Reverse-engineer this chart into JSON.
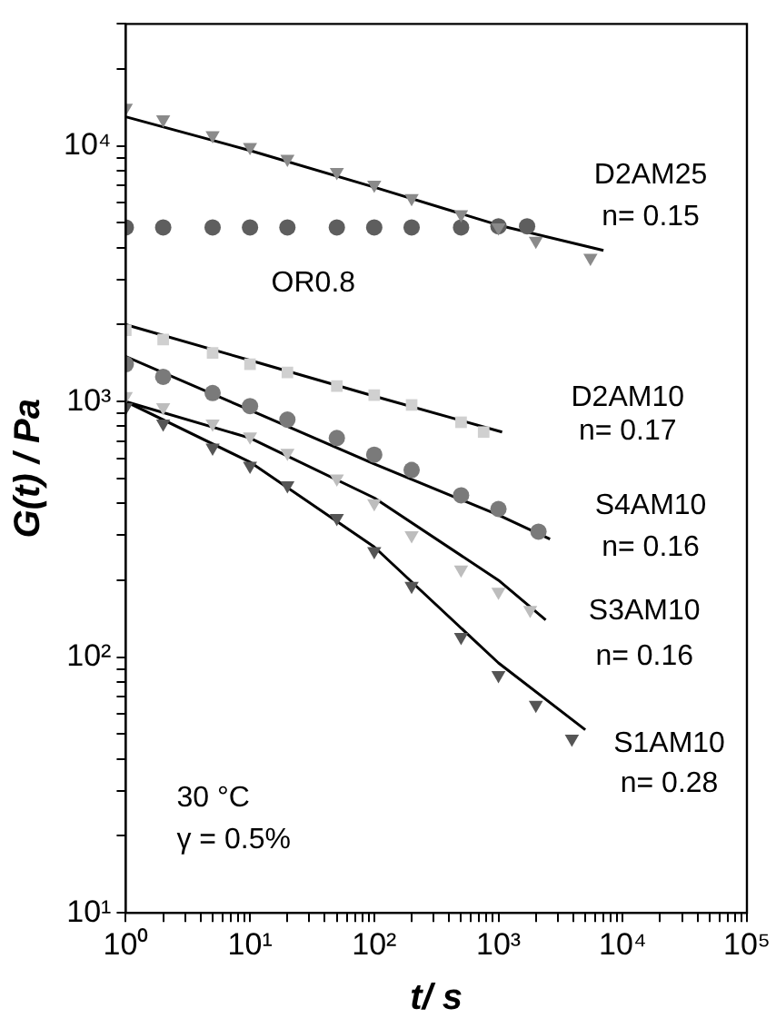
{
  "chart_data": {
    "type": "scatter",
    "xlabel": "t/ s",
    "ylabel": "G(t) / Pa",
    "log": "xy",
    "grid": false,
    "legend": false,
    "xlim": [
      1,
      100000
    ],
    "ylim": [
      10,
      30000
    ],
    "xticks": [
      {
        "value": 1,
        "label": "10⁰"
      },
      {
        "value": 2,
        "label": null
      },
      {
        "value": 3,
        "label": null
      },
      {
        "value": 4,
        "label": null
      },
      {
        "value": 5,
        "label": null
      },
      {
        "value": 6,
        "label": null
      },
      {
        "value": 7,
        "label": null
      },
      {
        "value": 8,
        "label": null
      },
      {
        "value": 9,
        "label": null
      },
      {
        "value": 10,
        "label": "10¹"
      },
      {
        "value": 20,
        "label": null
      },
      {
        "value": 30,
        "label": null
      },
      {
        "value": 40,
        "label": null
      },
      {
        "value": 50,
        "label": null
      },
      {
        "value": 60,
        "label": null
      },
      {
        "value": 70,
        "label": null
      },
      {
        "value": 80,
        "label": null
      },
      {
        "value": 90,
        "label": null
      },
      {
        "value": 100,
        "label": "10²"
      },
      {
        "value": 200,
        "label": null
      },
      {
        "value": 300,
        "label": null
      },
      {
        "value": 400,
        "label": null
      },
      {
        "value": 500,
        "label": null
      },
      {
        "value": 600,
        "label": null
      },
      {
        "value": 700,
        "label": null
      },
      {
        "value": 800,
        "label": null
      },
      {
        "value": 900,
        "label": null
      },
      {
        "value": 1000,
        "label": "10³"
      },
      {
        "value": 2000,
        "label": null
      },
      {
        "value": 3000,
        "label": null
      },
      {
        "value": 4000,
        "label": null
      },
      {
        "value": 5000,
        "label": null
      },
      {
        "value": 6000,
        "label": null
      },
      {
        "value": 7000,
        "label": null
      },
      {
        "value": 8000,
        "label": null
      },
      {
        "value": 9000,
        "label": null
      },
      {
        "value": 10000,
        "label": "10⁴"
      },
      {
        "value": 20000,
        "label": null
      },
      {
        "value": 30000,
        "label": null
      },
      {
        "value": 40000,
        "label": null
      },
      {
        "value": 50000,
        "label": null
      },
      {
        "value": 60000,
        "label": null
      },
      {
        "value": 70000,
        "label": null
      },
      {
        "value": 80000,
        "label": null
      },
      {
        "value": 90000,
        "label": null
      },
      {
        "value": 100000,
        "label": "10⁵"
      }
    ],
    "yticks": [
      {
        "value": 10,
        "label": "10¹"
      },
      {
        "value": 20,
        "label": null
      },
      {
        "value": 30,
        "label": null
      },
      {
        "value": 40,
        "label": null
      },
      {
        "value": 50,
        "label": null
      },
      {
        "value": 60,
        "label": null
      },
      {
        "value": 70,
        "label": null
      },
      {
        "value": 80,
        "label": null
      },
      {
        "value": 90,
        "label": null
      },
      {
        "value": 100,
        "label": "10²"
      },
      {
        "value": 200,
        "label": null
      },
      {
        "value": 300,
        "label": null
      },
      {
        "value": 400,
        "label": null
      },
      {
        "value": 500,
        "label": null
      },
      {
        "value": 600,
        "label": null
      },
      {
        "value": 700,
        "label": null
      },
      {
        "value": 800,
        "label": null
      },
      {
        "value": 900,
        "label": null
      },
      {
        "value": 1000,
        "label": "10³"
      },
      {
        "value": 2000,
        "label": null
      },
      {
        "value": 3000,
        "label": null
      },
      {
        "value": 4000,
        "label": null
      },
      {
        "value": 5000,
        "label": null
      },
      {
        "value": 6000,
        "label": null
      },
      {
        "value": 7000,
        "label": null
      },
      {
        "value": 8000,
        "label": null
      },
      {
        "value": 9000,
        "label": null
      },
      {
        "value": 10000,
        "label": "10⁴"
      },
      {
        "value": 20000,
        "label": null
      },
      {
        "value": 30000,
        "label": null
      }
    ],
    "series": [
      {
        "type": "scatter",
        "marker": "triangle",
        "color": "#8a8a8a",
        "x": [
          1,
          2,
          5,
          10,
          20,
          50,
          100,
          200,
          500,
          1000,
          2000,
          5500
        ],
        "values": [
          14100,
          12700,
          11000,
          9900,
          8900,
          7900,
          7050,
          6250,
          5400,
          4800,
          4250,
          3650
        ]
      },
      {
        "type": "scatter",
        "marker": "circle",
        "color": "#5e5e5e",
        "x": [
          1,
          2,
          5,
          10,
          20,
          50,
          100,
          200,
          500,
          1000,
          1700
        ],
        "values": [
          4800,
          4800,
          4800,
          4800,
          4800,
          4800,
          4800,
          4800,
          4800,
          4850,
          4850
        ]
      },
      {
        "type": "scatter",
        "marker": "square",
        "color": "#d0d0d0",
        "x": [
          1,
          2,
          5,
          10,
          20,
          50,
          100,
          200,
          500,
          760
        ],
        "values": [
          1900,
          1750,
          1550,
          1400,
          1300,
          1150,
          1060,
          970,
          830,
          760
        ]
      },
      {
        "type": "scatter",
        "marker": "circle",
        "color": "#7a7a7a",
        "x": [
          1,
          2,
          5,
          10,
          20,
          50,
          100,
          200,
          500,
          1000,
          2100
        ],
        "values": [
          1400,
          1250,
          1080,
          960,
          850,
          720,
          620,
          540,
          430,
          380,
          310
        ]
      },
      {
        "type": "scatter",
        "marker": "triangle",
        "color": "#bdbdbd",
        "x": [
          1,
          2,
          5,
          10,
          20,
          50,
          100,
          200,
          500,
          1000,
          1800
        ],
        "values": [
          1050,
          950,
          820,
          730,
          630,
          500,
          400,
          300,
          220,
          180,
          153
        ]
      },
      {
        "type": "scatter",
        "marker": "triangle",
        "color": "#555555",
        "x": [
          1,
          2,
          5,
          10,
          20,
          50,
          100,
          200,
          500,
          1000,
          2000,
          3900
        ],
        "values": [
          950,
          820,
          660,
          560,
          470,
          350,
          260,
          190,
          120,
          85,
          65,
          48
        ]
      },
      {
        "type": "line",
        "marker": "none",
        "color": "#000000",
        "x": [
          1,
          10,
          100,
          1000,
          7000
        ],
        "values": [
          13000,
          9600,
          6900,
          4900,
          3900
        ]
      },
      {
        "type": "line",
        "marker": "none",
        "color": "#000000",
        "x": [
          1,
          10,
          100,
          1070
        ],
        "values": [
          2000,
          1450,
          1050,
          760
        ]
      },
      {
        "type": "line",
        "marker": "none",
        "color": "#000000",
        "x": [
          1,
          10,
          100,
          1000,
          2600
        ],
        "values": [
          1500,
          925,
          570,
          360,
          290
        ]
      },
      {
        "type": "line",
        "marker": "none",
        "color": "#000000",
        "x": [
          1,
          10,
          100,
          1000,
          2400
        ],
        "values": [
          1000,
          720,
          420,
          200,
          140
        ]
      },
      {
        "type": "line",
        "marker": "none",
        "color": "#000000",
        "x": [
          1,
          10,
          100,
          1000,
          5000
        ],
        "values": [
          1000,
          580,
          270,
          95,
          52
        ]
      }
    ],
    "annotations": [
      "D2AM25",
      "n= 0.15",
      "OR0.8",
      "D2AM10",
      "n= 0.17",
      "S4AM10",
      "n= 0.16",
      "S3AM10",
      "n= 0.16",
      "S1AM10",
      "n= 0.28",
      "30 °C",
      "γ = 0.5%"
    ]
  }
}
